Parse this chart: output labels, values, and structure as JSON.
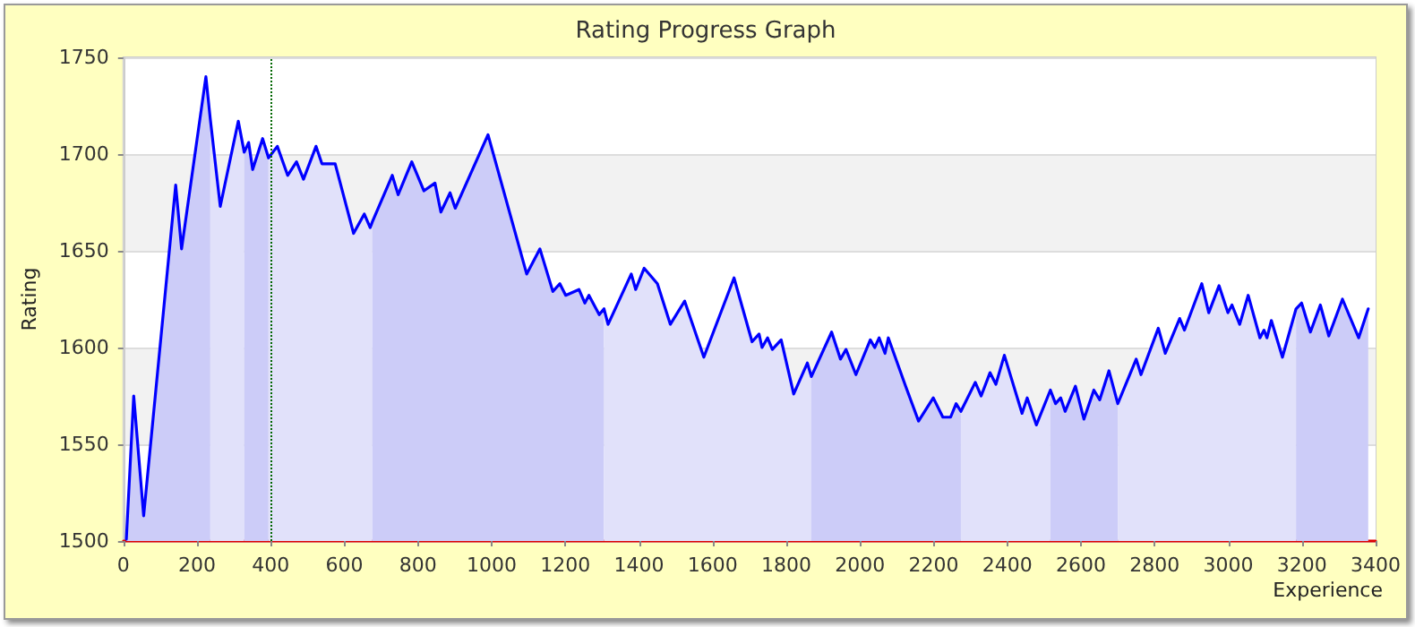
{
  "chart_data": {
    "type": "area",
    "title": "Rating Progress Graph",
    "xlabel": "Experience",
    "ylabel": "Rating",
    "series": [
      {
        "color": "#ccccf8",
        "x": [
          8,
          28,
          55,
          142,
          158,
          224,
          236
        ],
        "values": [
          1501,
          1575,
          1513,
          1684,
          1651,
          1740,
          1718
        ]
      },
      {
        "color": "#e1e1fa",
        "x": [
          236,
          263,
          312,
          328
        ],
        "values": [
          1718,
          1673,
          1717,
          1701
        ]
      },
      {
        "color": "#ccccf8",
        "x": [
          328,
          340,
          351,
          378,
          394
        ],
        "values": [
          1701,
          1706,
          1692,
          1708,
          1698
        ]
      },
      {
        "color": "#e1e1fa",
        "x": [
          394,
          418,
          446,
          470,
          489,
          523,
          539,
          575,
          625,
          654,
          670,
          676
        ],
        "values": [
          1698,
          1704,
          1689,
          1696,
          1687,
          1704,
          1695,
          1695,
          1659,
          1669,
          1662,
          1665
        ]
      },
      {
        "color": "#ccccf8",
        "x": [
          676,
          730,
          746,
          783,
          816,
          846,
          862,
          887,
          901,
          990,
          1095,
          1131,
          1166,
          1185,
          1201,
          1237,
          1253,
          1264,
          1292,
          1305
        ],
        "values": [
          1665,
          1689,
          1679,
          1696,
          1681,
          1685,
          1670,
          1680,
          1672,
          1710,
          1638,
          1651,
          1629,
          1633,
          1627,
          1630,
          1623,
          1627,
          1617,
          1620
        ]
      },
      {
        "color": "#e1e1fa",
        "x": [
          1305,
          1316,
          1379,
          1391,
          1414,
          1450,
          1485,
          1524,
          1576,
          1658,
          1707,
          1726,
          1734,
          1749,
          1762,
          1786,
          1820,
          1857,
          1868
        ],
        "values": [
          1620,
          1612,
          1638,
          1630,
          1641,
          1633,
          1612,
          1624,
          1595,
          1636,
          1603,
          1607,
          1600,
          1605,
          1599,
          1604,
          1576,
          1592,
          1585
        ]
      },
      {
        "color": "#ccccf8",
        "x": [
          1868,
          1923,
          1947,
          1962,
          1989,
          2028,
          2040,
          2052,
          2068,
          2077,
          2124,
          2159,
          2199,
          2225,
          2246,
          2261,
          2274
        ],
        "values": [
          1585,
          1608,
          1594,
          1599,
          1586,
          1604,
          1600,
          1605,
          1597,
          1605,
          1580,
          1562,
          1574,
          1564,
          1564,
          1571,
          1567
        ]
      },
      {
        "color": "#e1e1fa",
        "x": [
          2274,
          2313,
          2329,
          2353,
          2369,
          2392,
          2440,
          2454,
          2479,
          2517
        ],
        "values": [
          1567,
          1582,
          1575,
          1587,
          1581,
          1596,
          1566,
          1574,
          1560,
          1578
        ]
      },
      {
        "color": "#ccccf8",
        "x": [
          2517,
          2531,
          2545,
          2557,
          2585,
          2608,
          2635,
          2651,
          2676,
          2700
        ],
        "values": [
          1578,
          1571,
          1574,
          1567,
          1580,
          1563,
          1578,
          1573,
          1588,
          1571
        ]
      },
      {
        "color": "#e1e1fa",
        "x": [
          2700,
          2750,
          2763,
          2810,
          2829,
          2868,
          2881,
          2928,
          2947,
          2975,
          2999,
          3010,
          3031,
          3054,
          3086,
          3097,
          3105,
          3117,
          3147,
          3184
        ],
        "values": [
          1571,
          1594,
          1586,
          1610,
          1597,
          1615,
          1609,
          1633,
          1618,
          1632,
          1618,
          1622,
          1612,
          1627,
          1605,
          1609,
          1605,
          1614,
          1595,
          1620
        ]
      },
      {
        "color": "#ccccf8",
        "x": [
          3184,
          3199,
          3223,
          3250,
          3273,
          3310,
          3354,
          3380
        ],
        "values": [
          1620,
          1623,
          1608,
          1622,
          1606,
          1625,
          1605,
          1620
        ]
      },
      {
        "type": "line",
        "color": "#0000ff",
        "x": [
          8,
          28,
          55,
          142,
          158,
          224,
          236,
          263,
          312,
          328,
          340,
          351,
          378,
          394,
          418,
          446,
          470,
          489,
          523,
          539,
          575,
          625,
          654,
          670,
          676,
          730,
          746,
          783,
          816,
          846,
          862,
          887,
          901,
          990,
          1095,
          1131,
          1166,
          1185,
          1201,
          1237,
          1253,
          1264,
          1292,
          1305,
          1316,
          1379,
          1391,
          1414,
          1450,
          1485,
          1524,
          1576,
          1658,
          1707,
          1726,
          1734,
          1749,
          1762,
          1786,
          1820,
          1857,
          1868,
          1923,
          1947,
          1962,
          1989,
          2028,
          2040,
          2052,
          2068,
          2077,
          2124,
          2159,
          2199,
          2225,
          2246,
          2261,
          2274,
          2313,
          2329,
          2353,
          2369,
          2392,
          2440,
          2454,
          2479,
          2517,
          2531,
          2545,
          2557,
          2585,
          2608,
          2635,
          2651,
          2676,
          2700,
          2750,
          2763,
          2810,
          2829,
          2868,
          2881,
          2928,
          2947,
          2975,
          2999,
          3010,
          3031,
          3054,
          3086,
          3097,
          3105,
          3117,
          3147,
          3184,
          3199,
          3223,
          3250,
          3273,
          3310,
          3354,
          3380
        ],
        "values": [
          1501,
          1575,
          1513,
          1684,
          1651,
          1740,
          1718,
          1673,
          1717,
          1701,
          1706,
          1692,
          1708,
          1698,
          1704,
          1689,
          1696,
          1687,
          1704,
          1695,
          1695,
          1659,
          1669,
          1662,
          1665,
          1689,
          1679,
          1696,
          1681,
          1685,
          1670,
          1680,
          1672,
          1710,
          1638,
          1651,
          1629,
          1633,
          1627,
          1630,
          1623,
          1627,
          1617,
          1620,
          1612,
          1638,
          1630,
          1641,
          1633,
          1612,
          1624,
          1595,
          1636,
          1603,
          1607,
          1600,
          1605,
          1599,
          1604,
          1576,
          1592,
          1585,
          1608,
          1594,
          1599,
          1586,
          1604,
          1600,
          1605,
          1597,
          1605,
          1580,
          1562,
          1574,
          1564,
          1564,
          1571,
          1567,
          1582,
          1575,
          1587,
          1581,
          1596,
          1566,
          1574,
          1560,
          1578,
          1571,
          1574,
          1567,
          1580,
          1563,
          1578,
          1573,
          1588,
          1571,
          1594,
          1586,
          1610,
          1597,
          1615,
          1609,
          1633,
          1618,
          1632,
          1618,
          1622,
          1612,
          1627,
          1605,
          1609,
          1605,
          1614,
          1595,
          1620,
          1623,
          1608,
          1622,
          1606,
          1625,
          1605,
          1620
        ]
      }
    ],
    "xlim": [
      0,
      3400
    ],
    "ylim": [
      1500,
      1750
    ],
    "xticks": [
      0,
      200,
      400,
      600,
      800,
      1000,
      1200,
      1400,
      1600,
      1800,
      2000,
      2200,
      2400,
      2600,
      2800,
      3000,
      3200,
      3400
    ],
    "yticks": [
      1500,
      1550,
      1600,
      1650,
      1700,
      1750
    ],
    "grid": "y",
    "marker": "none",
    "line_style": "solid",
    "ref_lines": [
      {
        "axis": "x",
        "value": 400,
        "color": "#006600",
        "line_style": "dotted"
      }
    ]
  }
}
